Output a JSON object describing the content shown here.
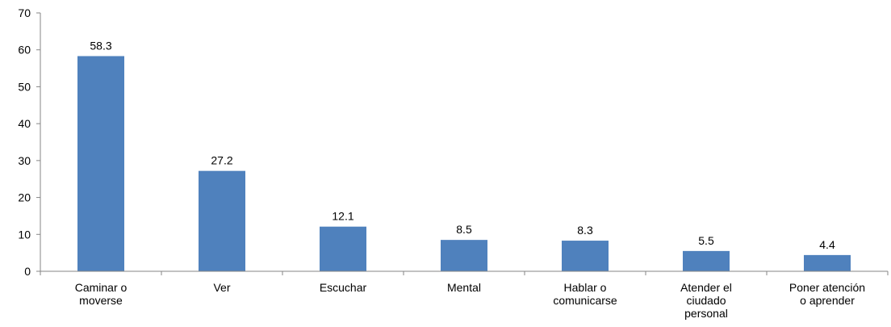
{
  "chart_data": {
    "type": "bar",
    "title": "",
    "xlabel": "",
    "ylabel": "",
    "ylim": [
      0,
      70
    ],
    "yticks": [
      0,
      10,
      20,
      30,
      40,
      50,
      60,
      70
    ],
    "grid": false,
    "legend": "none",
    "bar_color": "#4F81BD",
    "categories": [
      [
        "Caminar o",
        "moverse"
      ],
      [
        "Ver"
      ],
      [
        "Escuchar"
      ],
      [
        "Mental"
      ],
      [
        "Hablar o",
        "comunicarse"
      ],
      [
        "Atender el",
        "ciudado",
        "personal"
      ],
      [
        "Poner atención",
        "o aprender"
      ]
    ],
    "values": [
      58.3,
      27.2,
      12.1,
      8.5,
      8.3,
      5.5,
      4.4
    ],
    "value_labels": [
      "58.3",
      "27.2",
      "12.1",
      "8.5",
      "8.3",
      "5.5",
      "4.4"
    ]
  }
}
